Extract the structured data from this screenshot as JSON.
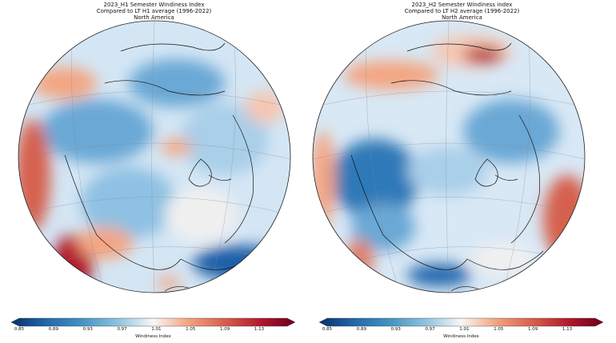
{
  "maps": [
    {
      "title_line1": "2023_H1 Semester Windiness Index",
      "title_line2": "Compared to LT H1 average (1996-2022)",
      "title_line3": "North America"
    },
    {
      "title_line1": "2023_H2 Semester Windiness index",
      "title_line2": "Compared to LT H2 average (1996-2022)",
      "title_line3": "North America"
    }
  ],
  "colorbar": {
    "label": "Windiness Index",
    "min": 0.85,
    "max": 1.13,
    "ticks": [
      "0.85",
      "0.89",
      "0.93",
      "0.97",
      "1.01",
      "1.05",
      "1.09",
      "1.13"
    ],
    "colors": [
      "#08306b",
      "#2166ac",
      "#4393c3",
      "#92c5de",
      "#f7f7f7",
      "#f4a582",
      "#d6604d",
      "#b2182b",
      "#67001f"
    ]
  }
}
